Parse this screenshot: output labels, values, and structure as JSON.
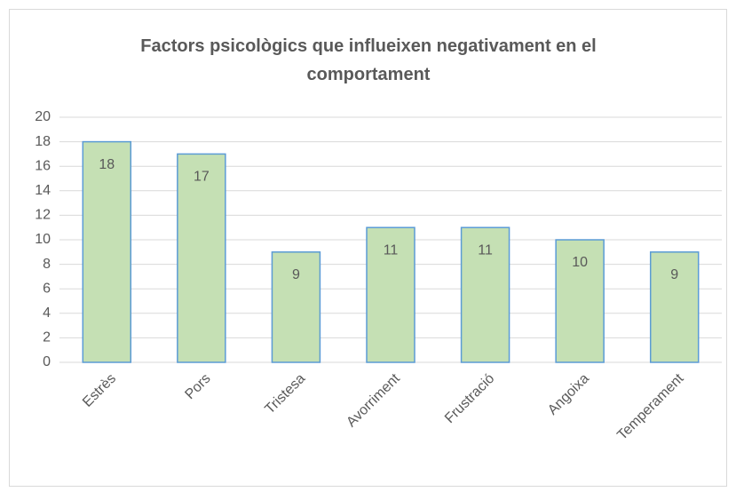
{
  "chart_data": {
    "type": "bar",
    "title": "Factors psicològics que influeixen negativament en el comportament",
    "categories": [
      "Estrès",
      "Pors",
      "Tristesa",
      "Avorriment",
      "Frustració",
      "Angoixa",
      "Temperament"
    ],
    "values": [
      18,
      17,
      9,
      11,
      11,
      10,
      9
    ],
    "color": "#c5e0b4",
    "edge_color": "#5b9bd5",
    "ylim": [
      0,
      20
    ],
    "yticks": [
      0,
      2,
      4,
      6,
      8,
      10,
      12,
      14,
      16,
      18,
      20
    ],
    "grid": true
  }
}
